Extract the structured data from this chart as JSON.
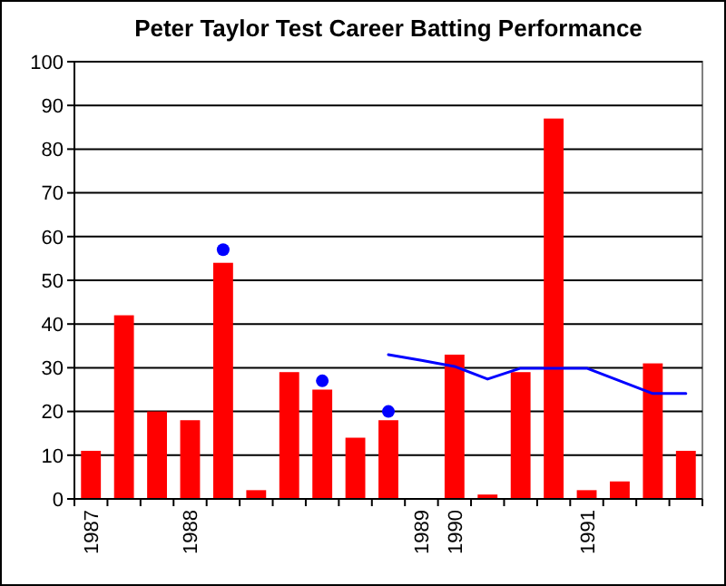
{
  "chart_data": {
    "type": "bar",
    "title": "Peter Taylor Test Career Batting Performance",
    "categories": [
      "1987",
      null,
      null,
      "1988",
      null,
      null,
      null,
      null,
      null,
      null,
      "1989",
      "1990",
      null,
      null,
      null,
      "1991",
      null,
      null,
      null
    ],
    "series": [
      {
        "color": "#ff0000",
        "values": [
          11,
          42,
          20,
          18,
          54,
          2,
          29,
          25,
          14,
          18,
          null,
          33,
          1,
          29,
          87,
          2,
          4,
          31,
          11
        ]
      },
      {
        "type": "scatter",
        "color": "#0000ff",
        "marker": "circle",
        "values": [
          null,
          null,
          null,
          null,
          57,
          null,
          null,
          27,
          null,
          20,
          null,
          null,
          null,
          null,
          null,
          null,
          null,
          null,
          null
        ]
      },
      {
        "type": "line",
        "color": "#0000ff",
        "marker": "none",
        "values": [
          null,
          null,
          null,
          null,
          null,
          null,
          null,
          null,
          null,
          33,
          31.7,
          30.3,
          27.4,
          29.9,
          29.9,
          29.9,
          27,
          24.1,
          24.1
        ]
      }
    ],
    "ylim": [
      0,
      100
    ],
    "yticks": [
      0,
      10,
      20,
      30,
      40,
      50,
      60,
      70,
      80,
      90,
      100
    ],
    "grid": "y"
  }
}
